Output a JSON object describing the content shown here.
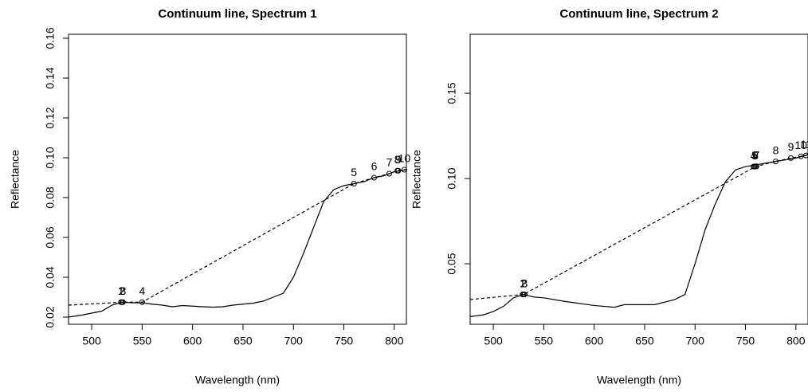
{
  "chart_data": [
    {
      "type": "line",
      "title": "Continuum line, Spectrum 1",
      "x_label": "Wavelength (nm)",
      "y_label": "Reflectance",
      "xlim": [
        477,
        812
      ],
      "ylim": [
        0.0164,
        0.162
      ],
      "xticks": [
        500,
        550,
        600,
        650,
        700,
        750,
        800
      ],
      "yticks": [
        0.02,
        0.04,
        0.06,
        0.08,
        {
          "value": 0.1,
          "label": "0.10"
        },
        0.12,
        0.14,
        0.16
      ],
      "spectrum": {
        "color": "#000000",
        "x": [
          477,
          490,
          500,
          510,
          520,
          530,
          540,
          550,
          560,
          570,
          580,
          590,
          600,
          610,
          620,
          630,
          640,
          650,
          660,
          670,
          680,
          690,
          700,
          710,
          720,
          730,
          740,
          750,
          760,
          770,
          780,
          790,
          800,
          812
        ],
        "y": [
          0.02,
          0.021,
          0.022,
          0.023,
          0.026,
          0.0275,
          0.0272,
          0.0272,
          0.0265,
          0.026,
          0.0252,
          0.0258,
          0.0255,
          0.0252,
          0.025,
          0.0252,
          0.026,
          0.0265,
          0.027,
          0.028,
          0.03,
          0.032,
          0.04,
          0.052,
          0.065,
          0.078,
          0.084,
          0.086,
          0.087,
          0.088,
          0.09,
          0.091,
          0.093,
          0.094
        ]
      },
      "continuum": {
        "color": "#000000",
        "dashed": true,
        "x": [
          477,
          530,
          550,
          760,
          780,
          795,
          803,
          810,
          812
        ],
        "y": [
          0.026,
          0.0275,
          0.0275,
          0.087,
          0.09,
          0.092,
          0.0935,
          0.094,
          0.0942
        ]
      },
      "hull_points": {
        "x": [
          529,
          530,
          531,
          550,
          760,
          780,
          795,
          803,
          804,
          810
        ],
        "y": [
          0.0275,
          0.0275,
          0.0275,
          0.0275,
          0.087,
          0.09,
          0.092,
          0.0935,
          0.0935,
          0.094
        ],
        "labels": [
          1,
          2,
          3,
          4,
          5,
          6,
          7,
          8,
          9,
          10
        ]
      }
    },
    {
      "type": "line",
      "title": "Continuum line, Spectrum 2",
      "x_label": "Wavelength (nm)",
      "y_label": "Reflectance",
      "xlim": [
        477,
        812
      ],
      "ylim": [
        0.0145,
        0.1846
      ],
      "xticks": [
        500,
        550,
        600,
        650,
        700,
        750,
        800
      ],
      "yticks": [
        0.05,
        {
          "value": 0.1,
          "label": "0.10"
        },
        0.15
      ],
      "spectrum": {
        "color": "#000000",
        "x": [
          477,
          490,
          500,
          510,
          520,
          530,
          540,
          550,
          570,
          600,
          620,
          630,
          660,
          680,
          690,
          700,
          710,
          720,
          730,
          740,
          750,
          760,
          780,
          800,
          812
        ],
        "y": [
          0.019,
          0.02,
          0.022,
          0.025,
          0.03,
          0.032,
          0.0305,
          0.03,
          0.028,
          0.0255,
          0.0245,
          0.026,
          0.026,
          0.029,
          0.032,
          0.05,
          0.07,
          0.085,
          0.098,
          0.105,
          0.107,
          0.108,
          0.11,
          0.112,
          0.114
        ]
      },
      "continuum": {
        "color": "#000000",
        "dashed": true,
        "x": [
          477,
          530,
          760,
          780,
          795,
          805,
          810,
          812
        ],
        "y": [
          0.029,
          0.032,
          0.107,
          0.11,
          0.112,
          0.113,
          0.1135,
          0.1138
        ]
      },
      "hull_points": {
        "x": [
          529,
          530,
          531,
          758,
          759,
          760,
          761,
          780,
          795,
          805,
          810
        ],
        "y": [
          0.032,
          0.032,
          0.032,
          0.107,
          0.107,
          0.107,
          0.1072,
          0.11,
          0.112,
          0.113,
          0.1135
        ],
        "labels": [
          1,
          2,
          3,
          4,
          5,
          6,
          7,
          8,
          9,
          10,
          11
        ]
      }
    }
  ]
}
